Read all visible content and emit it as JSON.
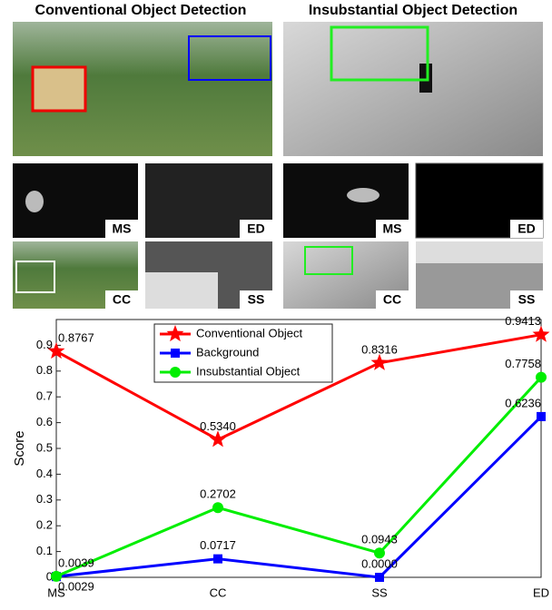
{
  "panels": {
    "titles": [
      "Conventional Object Detection",
      "Insubstantial Object Detection"
    ],
    "labels": [
      "MS",
      "ED",
      "CC",
      "SS",
      "MS",
      "ED",
      "CC",
      "SS"
    ]
  },
  "chart_data": {
    "type": "line",
    "y_label": "Score",
    "categories": [
      "MS",
      "CC",
      "SS",
      "ED"
    ],
    "ylim": [
      0,
      1
    ],
    "yticks": [
      0,
      0.1,
      0.2,
      0.3,
      0.4,
      0.5,
      0.6,
      0.7,
      0.8,
      0.9
    ],
    "legend": "upper left",
    "series": [
      {
        "name": "Conventional Object",
        "color": "#ff0000",
        "marker": "star",
        "values": [
          0.8767,
          0.534,
          0.8316,
          0.9413
        ],
        "value_labels": [
          "0.8767",
          "0.5340",
          "0.8316",
          "0.9413"
        ]
      },
      {
        "name": "Background",
        "color": "#0000ff",
        "marker": "square",
        "values": [
          0.0029,
          0.0717,
          0,
          0.6236
        ],
        "value_labels": [
          "0.0029",
          "0.0717",
          "0.0000",
          "0.6236"
        ]
      },
      {
        "name": "Insubstantial Object",
        "color": "#00ee00",
        "marker": "circle",
        "values": [
          0.0039,
          0.2702,
          0.0943,
          0.7758
        ],
        "value_labels": [
          "0.0039",
          "0.2702",
          "0.0943",
          "0.7758"
        ]
      }
    ]
  }
}
